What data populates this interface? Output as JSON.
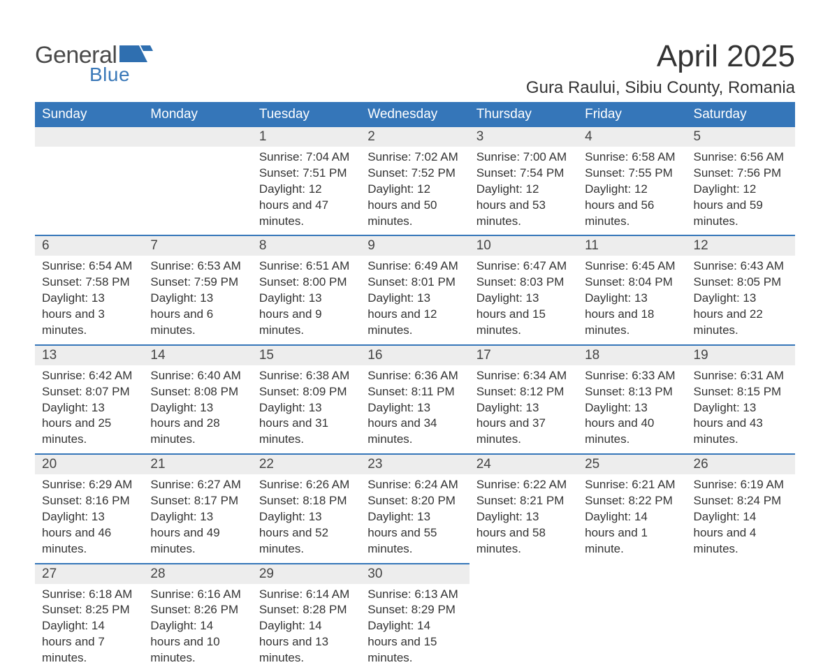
{
  "brand": {
    "word1": "General",
    "word2": "Blue",
    "shape_color": "#2f6fb0",
    "text_gray": "#4a4a4a",
    "text_blue": "#3a78b8"
  },
  "header": {
    "month_title": "April 2025",
    "location": "Gura Raului, Sibiu County, Romania",
    "title_color": "#333333"
  },
  "calendar": {
    "header_bg": "#3576b9",
    "header_fg": "#ffffff",
    "row_sep_color": "#3576b9",
    "daynum_bg": "#ededed",
    "text_color": "#333333",
    "day_names": [
      "Sunday",
      "Monday",
      "Tuesday",
      "Wednesday",
      "Thursday",
      "Friday",
      "Saturday"
    ],
    "weeks": [
      [
        {
          "day": "",
          "lines": []
        },
        {
          "day": "",
          "lines": []
        },
        {
          "day": "1",
          "lines": [
            "Sunrise: 7:04 AM",
            "Sunset: 7:51 PM",
            "Daylight: 12 hours and 47 minutes."
          ]
        },
        {
          "day": "2",
          "lines": [
            "Sunrise: 7:02 AM",
            "Sunset: 7:52 PM",
            "Daylight: 12 hours and 50 minutes."
          ]
        },
        {
          "day": "3",
          "lines": [
            "Sunrise: 7:00 AM",
            "Sunset: 7:54 PM",
            "Daylight: 12 hours and 53 minutes."
          ]
        },
        {
          "day": "4",
          "lines": [
            "Sunrise: 6:58 AM",
            "Sunset: 7:55 PM",
            "Daylight: 12 hours and 56 minutes."
          ]
        },
        {
          "day": "5",
          "lines": [
            "Sunrise: 6:56 AM",
            "Sunset: 7:56 PM",
            "Daylight: 12 hours and 59 minutes."
          ]
        }
      ],
      [
        {
          "day": "6",
          "lines": [
            "Sunrise: 6:54 AM",
            "Sunset: 7:58 PM",
            "Daylight: 13 hours and 3 minutes."
          ]
        },
        {
          "day": "7",
          "lines": [
            "Sunrise: 6:53 AM",
            "Sunset: 7:59 PM",
            "Daylight: 13 hours and 6 minutes."
          ]
        },
        {
          "day": "8",
          "lines": [
            "Sunrise: 6:51 AM",
            "Sunset: 8:00 PM",
            "Daylight: 13 hours and 9 minutes."
          ]
        },
        {
          "day": "9",
          "lines": [
            "Sunrise: 6:49 AM",
            "Sunset: 8:01 PM",
            "Daylight: 13 hours and 12 minutes."
          ]
        },
        {
          "day": "10",
          "lines": [
            "Sunrise: 6:47 AM",
            "Sunset: 8:03 PM",
            "Daylight: 13 hours and 15 minutes."
          ]
        },
        {
          "day": "11",
          "lines": [
            "Sunrise: 6:45 AM",
            "Sunset: 8:04 PM",
            "Daylight: 13 hours and 18 minutes."
          ]
        },
        {
          "day": "12",
          "lines": [
            "Sunrise: 6:43 AM",
            "Sunset: 8:05 PM",
            "Daylight: 13 hours and 22 minutes."
          ]
        }
      ],
      [
        {
          "day": "13",
          "lines": [
            "Sunrise: 6:42 AM",
            "Sunset: 8:07 PM",
            "Daylight: 13 hours and 25 minutes."
          ]
        },
        {
          "day": "14",
          "lines": [
            "Sunrise: 6:40 AM",
            "Sunset: 8:08 PM",
            "Daylight: 13 hours and 28 minutes."
          ]
        },
        {
          "day": "15",
          "lines": [
            "Sunrise: 6:38 AM",
            "Sunset: 8:09 PM",
            "Daylight: 13 hours and 31 minutes."
          ]
        },
        {
          "day": "16",
          "lines": [
            "Sunrise: 6:36 AM",
            "Sunset: 8:11 PM",
            "Daylight: 13 hours and 34 minutes."
          ]
        },
        {
          "day": "17",
          "lines": [
            "Sunrise: 6:34 AM",
            "Sunset: 8:12 PM",
            "Daylight: 13 hours and 37 minutes."
          ]
        },
        {
          "day": "18",
          "lines": [
            "Sunrise: 6:33 AM",
            "Sunset: 8:13 PM",
            "Daylight: 13 hours and 40 minutes."
          ]
        },
        {
          "day": "19",
          "lines": [
            "Sunrise: 6:31 AM",
            "Sunset: 8:15 PM",
            "Daylight: 13 hours and 43 minutes."
          ]
        }
      ],
      [
        {
          "day": "20",
          "lines": [
            "Sunrise: 6:29 AM",
            "Sunset: 8:16 PM",
            "Daylight: 13 hours and 46 minutes."
          ]
        },
        {
          "day": "21",
          "lines": [
            "Sunrise: 6:27 AM",
            "Sunset: 8:17 PM",
            "Daylight: 13 hours and 49 minutes."
          ]
        },
        {
          "day": "22",
          "lines": [
            "Sunrise: 6:26 AM",
            "Sunset: 8:18 PM",
            "Daylight: 13 hours and 52 minutes."
          ]
        },
        {
          "day": "23",
          "lines": [
            "Sunrise: 6:24 AM",
            "Sunset: 8:20 PM",
            "Daylight: 13 hours and 55 minutes."
          ]
        },
        {
          "day": "24",
          "lines": [
            "Sunrise: 6:22 AM",
            "Sunset: 8:21 PM",
            "Daylight: 13 hours and 58 minutes."
          ]
        },
        {
          "day": "25",
          "lines": [
            "Sunrise: 6:21 AM",
            "Sunset: 8:22 PM",
            "Daylight: 14 hours and 1 minute."
          ]
        },
        {
          "day": "26",
          "lines": [
            "Sunrise: 6:19 AM",
            "Sunset: 8:24 PM",
            "Daylight: 14 hours and 4 minutes."
          ]
        }
      ],
      [
        {
          "day": "27",
          "lines": [
            "Sunrise: 6:18 AM",
            "Sunset: 8:25 PM",
            "Daylight: 14 hours and 7 minutes."
          ]
        },
        {
          "day": "28",
          "lines": [
            "Sunrise: 6:16 AM",
            "Sunset: 8:26 PM",
            "Daylight: 14 hours and 10 minutes."
          ]
        },
        {
          "day": "29",
          "lines": [
            "Sunrise: 6:14 AM",
            "Sunset: 8:28 PM",
            "Daylight: 14 hours and 13 minutes."
          ]
        },
        {
          "day": "30",
          "lines": [
            "Sunrise: 6:13 AM",
            "Sunset: 8:29 PM",
            "Daylight: 14 hours and 15 minutes."
          ]
        },
        {
          "day": "",
          "lines": []
        },
        {
          "day": "",
          "lines": []
        },
        {
          "day": "",
          "lines": []
        }
      ]
    ]
  }
}
